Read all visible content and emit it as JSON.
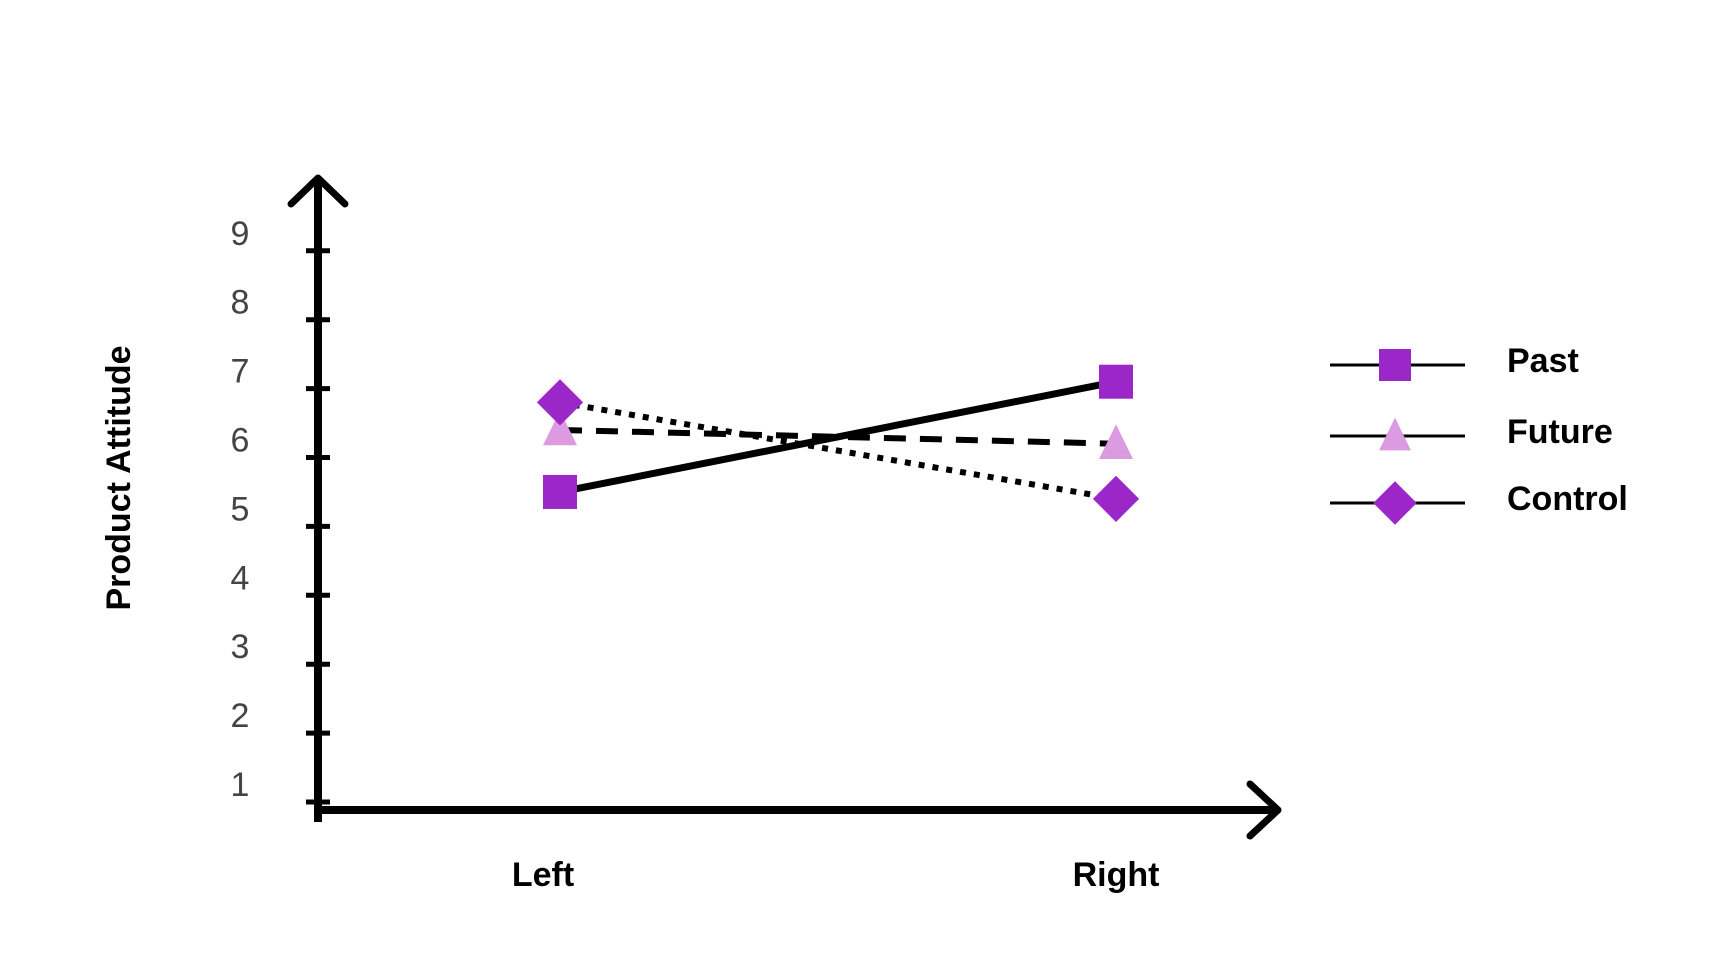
{
  "chart_data": {
    "type": "line",
    "title": "",
    "xlabel": "",
    "ylabel": "Product Attitude",
    "categories": [
      "Left",
      "Right"
    ],
    "y_ticks": [
      "1",
      "2",
      "3",
      "4",
      "5",
      "6",
      "7",
      "8",
      "9"
    ],
    "ylim": [
      1,
      9
    ],
    "grid": false,
    "legend_position": "right",
    "series": [
      {
        "name": "Past",
        "values": [
          5.5,
          7.1
        ],
        "marker": "square",
        "line": "solid",
        "color": "#9b27c9"
      },
      {
        "name": "Future",
        "values": [
          6.4,
          6.2
        ],
        "marker": "triangle",
        "line": "dashed",
        "color": "#dc9be0"
      },
      {
        "name": "Control",
        "values": [
          6.8,
          5.4
        ],
        "marker": "diamond",
        "line": "dotted",
        "color": "#9b27c9"
      }
    ]
  }
}
